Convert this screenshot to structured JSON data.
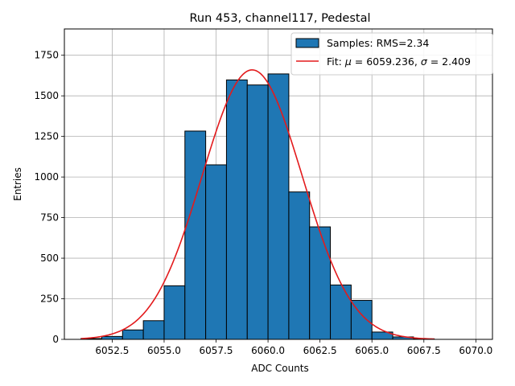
{
  "chart_data": {
    "type": "bar",
    "title": "Run 453, channel117, Pedestal",
    "xlabel": "ADC Counts",
    "ylabel": "Entries",
    "xlim": [
      6050.2,
      6070.8
    ],
    "ylim": [
      0,
      1912
    ],
    "grid": true,
    "legend_position": "top-right",
    "bar_color": "#1f77b4",
    "bar_edge_color": "#000000",
    "fit_color": "#e31a1c",
    "x_ticks": [
      6052.5,
      6055.0,
      6057.5,
      6060.0,
      6062.5,
      6065.0,
      6067.5,
      6070.0
    ],
    "x_tick_labels": [
      "6052.5",
      "6055.0",
      "6057.5",
      "6060.0",
      "6062.5",
      "6065.0",
      "6067.5",
      "6070.0"
    ],
    "y_ticks": [
      0,
      250,
      500,
      750,
      1000,
      1250,
      1500,
      1750
    ],
    "y_tick_labels": [
      "0",
      "250",
      "500",
      "750",
      "1000",
      "1250",
      "1500",
      "1750"
    ],
    "bins": [
      {
        "left": 6051.0,
        "right": 6052.0,
        "value": 5
      },
      {
        "left": 6052.0,
        "right": 6053.0,
        "value": 18
      },
      {
        "left": 6053.0,
        "right": 6054.0,
        "value": 58
      },
      {
        "left": 6054.0,
        "right": 6055.0,
        "value": 115
      },
      {
        "left": 6055.0,
        "right": 6056.0,
        "value": 330
      },
      {
        "left": 6056.0,
        "right": 6057.0,
        "value": 1283
      },
      {
        "left": 6057.0,
        "right": 6058.0,
        "value": 1075
      },
      {
        "left": 6058.0,
        "right": 6059.0,
        "value": 1598
      },
      {
        "left": 6059.0,
        "right": 6060.0,
        "value": 1567
      },
      {
        "left": 6060.0,
        "right": 6061.0,
        "value": 1635
      },
      {
        "left": 6061.0,
        "right": 6062.0,
        "value": 908
      },
      {
        "left": 6062.0,
        "right": 6063.0,
        "value": 693
      },
      {
        "left": 6063.0,
        "right": 6064.0,
        "value": 335
      },
      {
        "left": 6064.0,
        "right": 6065.0,
        "value": 240
      },
      {
        "left": 6065.0,
        "right": 6066.0,
        "value": 45
      },
      {
        "left": 6066.0,
        "right": 6067.0,
        "value": 15
      },
      {
        "left": 6067.0,
        "right": 6068.0,
        "value": 3
      }
    ],
    "fit": {
      "function": "gaussian",
      "mu": 6059.236,
      "sigma": 2.409,
      "amplitude": 1660,
      "x_range": [
        6051.0,
        6068.0
      ]
    },
    "legend": {
      "samples_label": "Samples: RMS=2.34",
      "fit_label_prefix": "Fit: ",
      "fit_mu_symbol": "μ",
      "fit_mu_text": " = 6059.236, ",
      "fit_sigma_symbol": "σ",
      "fit_sigma_text": " = 2.409"
    }
  }
}
